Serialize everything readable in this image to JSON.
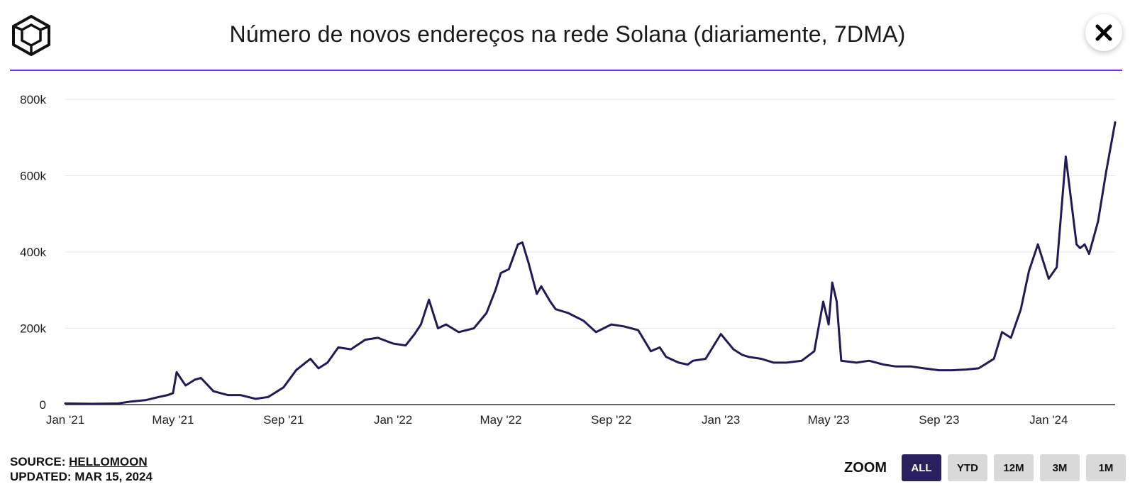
{
  "header": {
    "title": "Número de novos endereços na rede Solana (diariamente, 7DMA)",
    "close_icon": "close-icon",
    "logo_icon": "cube-logo-icon"
  },
  "colors": {
    "accent_rule": "#7b2cff",
    "line": "#1e1b57",
    "active_button": "#2a2060",
    "gridline": "#e6e6e6"
  },
  "chart_data": {
    "type": "line",
    "title": "Número de novos endereços na rede Solana (diariamente, 7DMA)",
    "xlabel": "",
    "ylabel": "",
    "x_ticks": [
      "Jan '21",
      "May '21",
      "Sep '21",
      "Jan '22",
      "May '22",
      "Sep '22",
      "Jan '23",
      "May '23",
      "Sep '23",
      "Jan '24"
    ],
    "y_ticks": [
      "0",
      "200k",
      "400k",
      "600k",
      "800k"
    ],
    "ylim": [
      0,
      800000
    ],
    "xlim": [
      "2021-01-01",
      "2024-03-15"
    ],
    "grid": "horizontal",
    "legend": "none",
    "series": [
      {
        "x": [
          "2021-01-01",
          "2021-02-01",
          "2021-03-01",
          "2021-03-15",
          "2021-04-01",
          "2021-04-15",
          "2021-04-25",
          "2021-05-01",
          "2021-05-05",
          "2021-05-15",
          "2021-05-25",
          "2021-06-01",
          "2021-06-15",
          "2021-07-01",
          "2021-07-15",
          "2021-08-01",
          "2021-08-15",
          "2021-09-01",
          "2021-09-15",
          "2021-10-01",
          "2021-10-10",
          "2021-10-20",
          "2021-11-01",
          "2021-11-15",
          "2021-12-01",
          "2021-12-15",
          "2022-01-01",
          "2022-01-15",
          "2022-01-25",
          "2022-02-01",
          "2022-02-10",
          "2022-02-20",
          "2022-03-01",
          "2022-03-15",
          "2022-04-01",
          "2022-04-15",
          "2022-04-25",
          "2022-05-01",
          "2022-05-10",
          "2022-05-20",
          "2022-05-25",
          "2022-06-01",
          "2022-06-10",
          "2022-06-15",
          "2022-06-25",
          "2022-07-01",
          "2022-07-15",
          "2022-08-01",
          "2022-08-15",
          "2022-09-01",
          "2022-09-15",
          "2022-10-01",
          "2022-10-15",
          "2022-10-25",
          "2022-11-01",
          "2022-11-15",
          "2022-11-25",
          "2022-12-01",
          "2022-12-15",
          "2023-01-01",
          "2023-01-15",
          "2023-01-25",
          "2023-02-01",
          "2023-02-15",
          "2023-03-01",
          "2023-03-15",
          "2023-04-01",
          "2023-04-15",
          "2023-04-25",
          "2023-05-01",
          "2023-05-05",
          "2023-05-10",
          "2023-05-15",
          "2023-06-01",
          "2023-06-15",
          "2023-07-01",
          "2023-07-15",
          "2023-08-01",
          "2023-08-15",
          "2023-09-01",
          "2023-09-15",
          "2023-10-01",
          "2023-10-15",
          "2023-11-01",
          "2023-11-10",
          "2023-11-20",
          "2023-12-01",
          "2023-12-10",
          "2023-12-20",
          "2024-01-01",
          "2024-01-10",
          "2024-01-20",
          "2024-02-01",
          "2024-02-05",
          "2024-02-10",
          "2024-02-15",
          "2024-02-25",
          "2024-03-05",
          "2024-03-15"
        ],
        "y": [
          3000,
          2000,
          3000,
          8000,
          12000,
          20000,
          25000,
          30000,
          85000,
          50000,
          65000,
          70000,
          35000,
          25000,
          25000,
          15000,
          20000,
          45000,
          90000,
          120000,
          95000,
          110000,
          150000,
          145000,
          170000,
          175000,
          160000,
          155000,
          185000,
          210000,
          275000,
          200000,
          210000,
          190000,
          200000,
          240000,
          300000,
          345000,
          355000,
          420000,
          425000,
          370000,
          290000,
          310000,
          270000,
          250000,
          240000,
          220000,
          190000,
          210000,
          205000,
          195000,
          140000,
          150000,
          125000,
          110000,
          105000,
          115000,
          120000,
          185000,
          145000,
          130000,
          125000,
          120000,
          110000,
          110000,
          115000,
          140000,
          270000,
          210000,
          320000,
          270000,
          115000,
          110000,
          115000,
          105000,
          100000,
          100000,
          95000,
          90000,
          90000,
          92000,
          95000,
          120000,
          190000,
          175000,
          250000,
          350000,
          420000,
          330000,
          360000,
          650000,
          420000,
          410000,
          420000,
          395000,
          480000,
          610000,
          740000
        ]
      }
    ]
  },
  "footer": {
    "source_prefix": "SOURCE:",
    "source_name": "HELLOMOON",
    "updated": "UPDATED: MAR 15, 2024"
  },
  "zoom": {
    "label": "ZOOM",
    "buttons": [
      "ALL",
      "YTD",
      "12M",
      "3M",
      "1M"
    ],
    "active": "ALL"
  }
}
